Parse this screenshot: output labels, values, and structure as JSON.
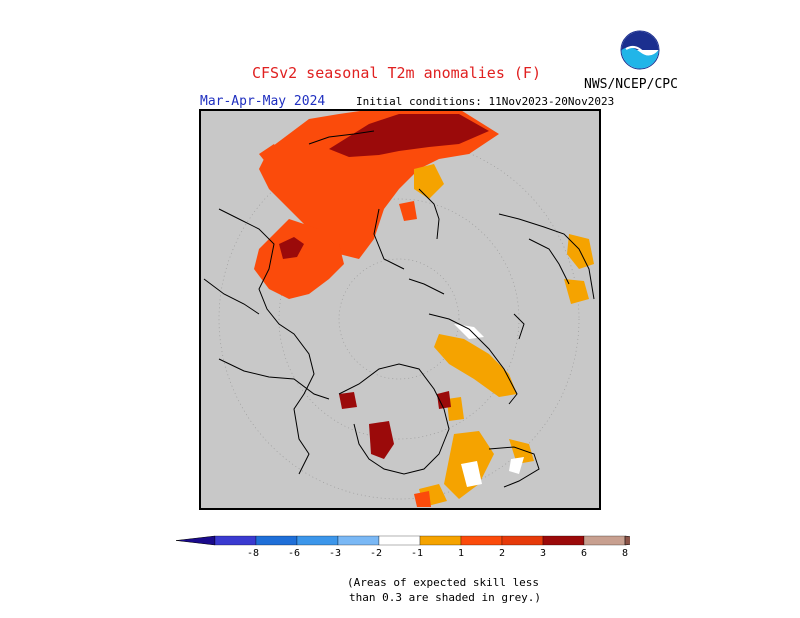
{
  "title": "CFSv2 seasonal T2m anomalies (F)",
  "season": "Mar-Apr-May 2024",
  "initial_conditions": "Initial conditions: 11Nov2023-20Nov2023",
  "agency": "NWS/NCEP/CPC",
  "logo_text": "NOAA",
  "colorbar": {
    "tick_labels": [
      "-8",
      "-6",
      "-3",
      "-2",
      "-1",
      "1",
      "2",
      "3",
      "6",
      "8"
    ],
    "colors": [
      "#1a0a8c",
      "#3a3ad0",
      "#1f6fd8",
      "#3c96ea",
      "#7ab8f5",
      "#ffffff",
      "#f5a300",
      "#fb4b0b",
      "#e63a0a",
      "#9b0a0a",
      "#c8a090",
      "#8b5448"
    ]
  },
  "note": {
    "line1": "(Areas of expected skill less",
    "line2": "than 0.3 are shaded in grey.)"
  },
  "map_colors": {
    "grey": "#c8c8c8",
    "light_orange": "#f5a300",
    "orange_red": "#fb4b0b",
    "dark_red": "#9b0a0a",
    "white": "#ffffff"
  }
}
